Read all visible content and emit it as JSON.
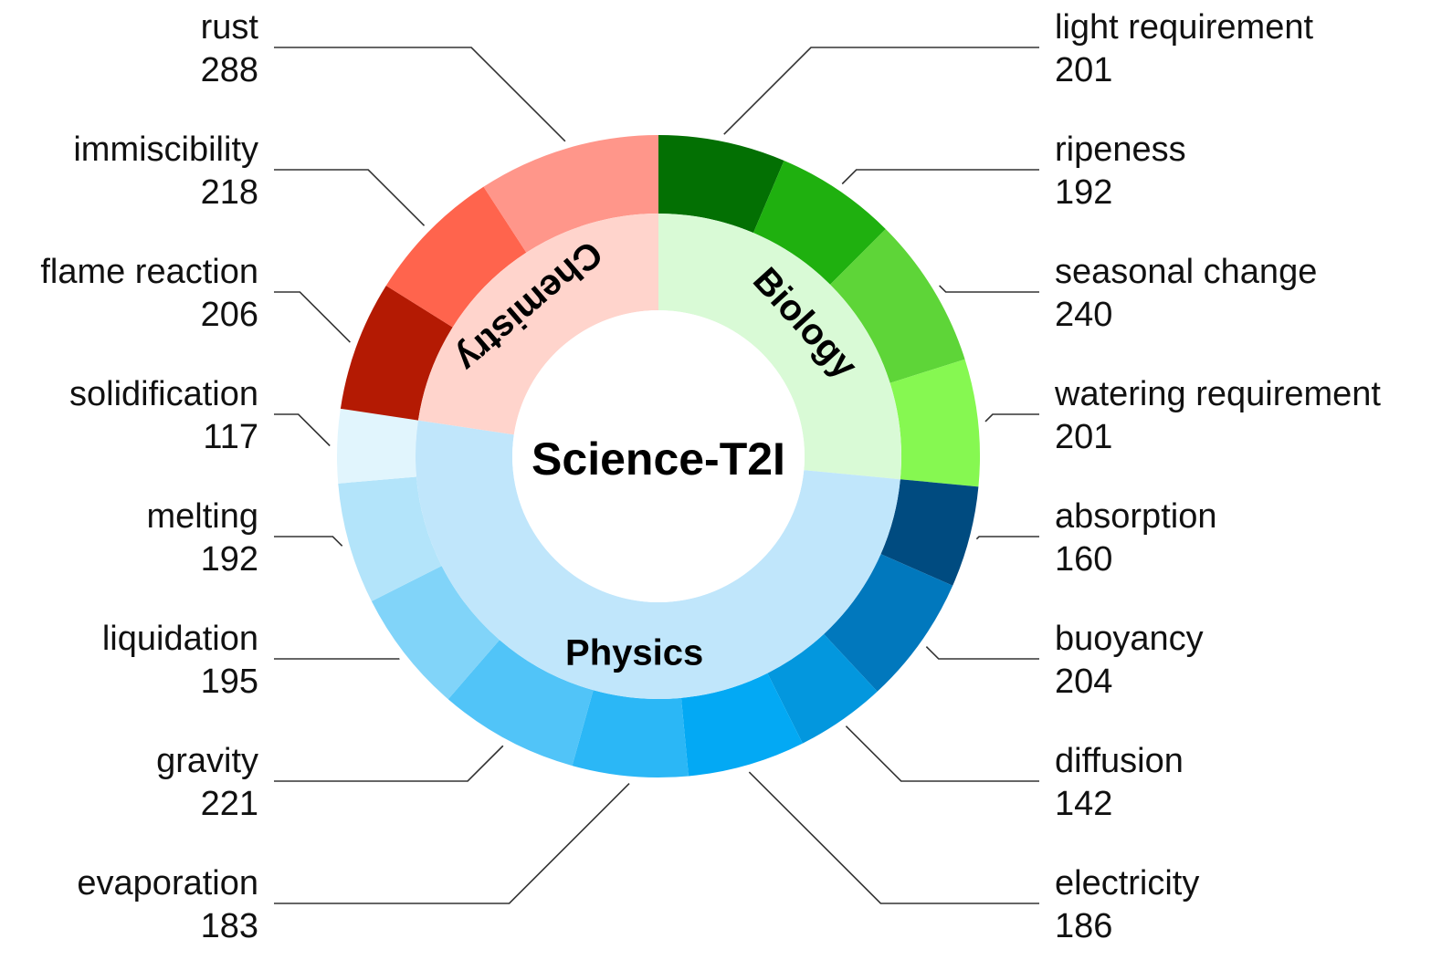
{
  "chart_data": {
    "type": "pie",
    "title": "Science-T2I",
    "categories": [
      {
        "name": "Biology",
        "color": "#d9fad6",
        "items": [
          {
            "label": "light requirement",
            "value": 201,
            "color": "#037003"
          },
          {
            "label": "ripeness",
            "value": 192,
            "color": "#1fb00f"
          },
          {
            "label": "seasonal change",
            "value": 240,
            "color": "#5ed538"
          },
          {
            "label": "watering requirement",
            "value": 201,
            "color": "#86f851"
          }
        ]
      },
      {
        "name": "Physics",
        "color": "#c0e6fb",
        "items": [
          {
            "label": "absorption",
            "value": 160,
            "color": "#004b80"
          },
          {
            "label": "buoyancy",
            "value": 204,
            "color": "#0178bd"
          },
          {
            "label": "diffusion",
            "value": 142,
            "color": "#0397de"
          },
          {
            "label": "electricity",
            "value": 186,
            "color": "#03a9f4"
          },
          {
            "label": "evaporation",
            "value": 183,
            "color": "#2bb7f6"
          },
          {
            "label": "gravity",
            "value": 221,
            "color": "#51c4f8"
          },
          {
            "label": "liquidation",
            "value": 195,
            "color": "#81d4f9"
          },
          {
            "label": "melting",
            "value": 192,
            "color": "#b3e4fa"
          },
          {
            "label": "solidification",
            "value": 117,
            "color": "#e1f5fd"
          }
        ]
      },
      {
        "name": "Chemistry",
        "color": "#ffd4cc",
        "items": [
          {
            "label": "flame reaction",
            "value": 206,
            "color": "#b41a03"
          },
          {
            "label": "immiscibility",
            "value": 218,
            "color": "#ff644d"
          },
          {
            "label": "rust",
            "value": 288,
            "color": "#ff968a"
          }
        ]
      }
    ],
    "legend": "none",
    "grid": false
  }
}
